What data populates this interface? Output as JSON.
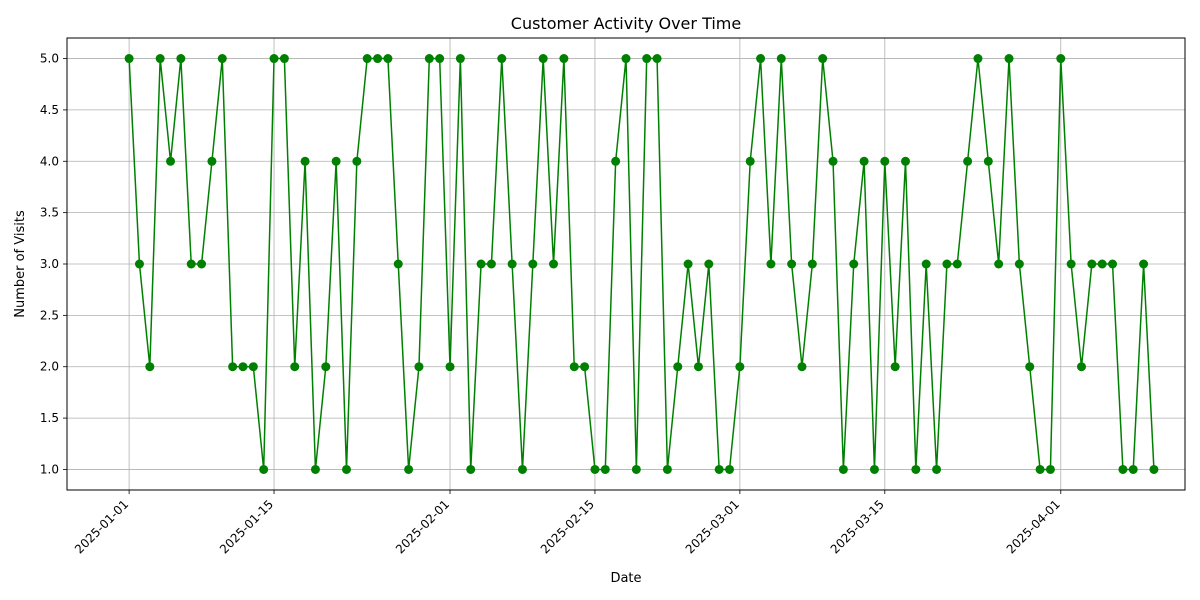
{
  "chart_data": {
    "type": "line",
    "title": "Customer Activity Over Time",
    "xlabel": "Date",
    "ylabel": "Number of Visits",
    "color": "#008000",
    "marker": "circle",
    "grid": true,
    "x_start": "2025-01-01",
    "x_ticks": [
      "2025-01-01",
      "2025-01-15",
      "2025-02-01",
      "2025-02-15",
      "2025-03-01",
      "2025-03-15",
      "2025-04-01"
    ],
    "y_ticks": [
      "1.0",
      "1.5",
      "2.0",
      "2.5",
      "3.0",
      "3.5",
      "4.0",
      "4.5",
      "5.0"
    ],
    "xlim": [
      "2024-12-26",
      "2025-04-13"
    ],
    "ylim": [
      0.8,
      5.2
    ],
    "series": [
      {
        "values": [
          5,
          3,
          2,
          5,
          4,
          5,
          3,
          3,
          4,
          5,
          2,
          2,
          2,
          1,
          5,
          5,
          2,
          4,
          1,
          2,
          4,
          1,
          4,
          5,
          5,
          5,
          3,
          1,
          2,
          5,
          5,
          2,
          5,
          1,
          3,
          3,
          5,
          3,
          1,
          3,
          5,
          3,
          5,
          2,
          2,
          1,
          1,
          4,
          5,
          1,
          5,
          5,
          1,
          2,
          3,
          2,
          3,
          1,
          1,
          2,
          4,
          5,
          3,
          5,
          3,
          2,
          3,
          5,
          4,
          1,
          3,
          4,
          1,
          4,
          2,
          4,
          1,
          3,
          1,
          3,
          3,
          4,
          5,
          4,
          3,
          5,
          3,
          2,
          1,
          1,
          5,
          3,
          2,
          3,
          3,
          3,
          1,
          1,
          3,
          1
        ]
      }
    ]
  }
}
